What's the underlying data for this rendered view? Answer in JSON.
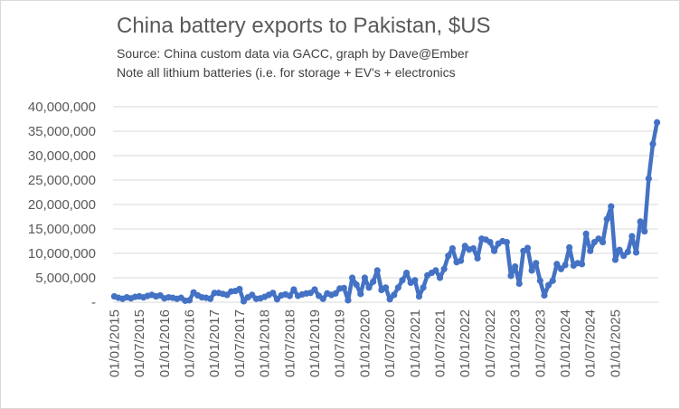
{
  "chart_data": {
    "type": "line",
    "title": "China battery exports to Pakistan, $US",
    "subtitle_lines": [
      "Source: China custom data via GACC, graph by Dave@Ember",
      "Note all lithium batteries (i.e. for storage + EV's + electronics"
    ],
    "xlabel": "",
    "ylabel": "",
    "ylim": [
      0,
      40000000
    ],
    "ytick_labels": [
      "-",
      "5,000,000",
      "10,000,000",
      "15,000,000",
      "20,000,000",
      "25,000,000",
      "30,000,000",
      "35,000,000",
      "40,000,000"
    ],
    "xtick_labels": [
      "01/01/2015",
      "01/07/2015",
      "01/01/2016",
      "01/07/2016",
      "01/01/2017",
      "01/07/2017",
      "01/01/2018",
      "01/07/2018",
      "01/01/2019",
      "01/07/2019",
      "01/01/2020",
      "01/07/2020",
      "01/01/2021",
      "01/07/2021",
      "01/01/2022",
      "01/07/2022",
      "01/01/2023",
      "01/07/2023",
      "01/01/2024",
      "01/07/2024",
      "01/01/2025"
    ],
    "grid": true,
    "legend": "none",
    "line_color": "#4472C4",
    "x_start": "01/01/2015",
    "x_frequency": "monthly",
    "values": [
      1200000,
      900000,
      700000,
      1000000,
      800000,
      1100000,
      1200000,
      1000000,
      1300000,
      1500000,
      1200000,
      1400000,
      800000,
      1000000,
      900000,
      700000,
      900000,
      300000,
      400000,
      2000000,
      1400000,
      1000000,
      900000,
      700000,
      1900000,
      1900000,
      1700000,
      1500000,
      2200000,
      2300000,
      2700000,
      200000,
      1000000,
      1500000,
      700000,
      800000,
      1100000,
      1500000,
      1900000,
      600000,
      1400000,
      1600000,
      1300000,
      2600000,
      1300000,
      1600000,
      1800000,
      1900000,
      2600000,
      1300000,
      700000,
      1800000,
      1500000,
      1800000,
      2800000,
      2900000,
      400000,
      5000000,
      3600000,
      1700000,
      5000000,
      3000000,
      4200000,
      6500000,
      2500000,
      3000000,
      600000,
      1500000,
      3000000,
      4500000,
      6000000,
      4000000,
      4500000,
      1200000,
      3000000,
      5500000,
      6000000,
      6500000,
      5000000,
      6800000,
      9500000,
      11000000,
      8200000,
      8500000,
      11500000,
      10800000,
      11000000,
      9000000,
      13000000,
      12800000,
      12300000,
      10500000,
      12000000,
      12500000,
      12300000,
      5400000,
      7300000,
      3800000,
      10500000,
      11100000,
      6500000,
      8000000,
      4400000,
      1400000,
      3500000,
      4400000,
      7800000,
      6800000,
      7600000,
      11200000,
      7500000,
      8000000,
      7800000,
      14000000,
      10500000,
      12300000,
      13000000,
      12300000,
      17000000,
      19600000,
      8700000,
      10700000,
      9500000,
      10300000,
      13500000,
      10200000,
      16500000,
      14500000,
      25300000,
      32400000,
      36800000
    ]
  }
}
